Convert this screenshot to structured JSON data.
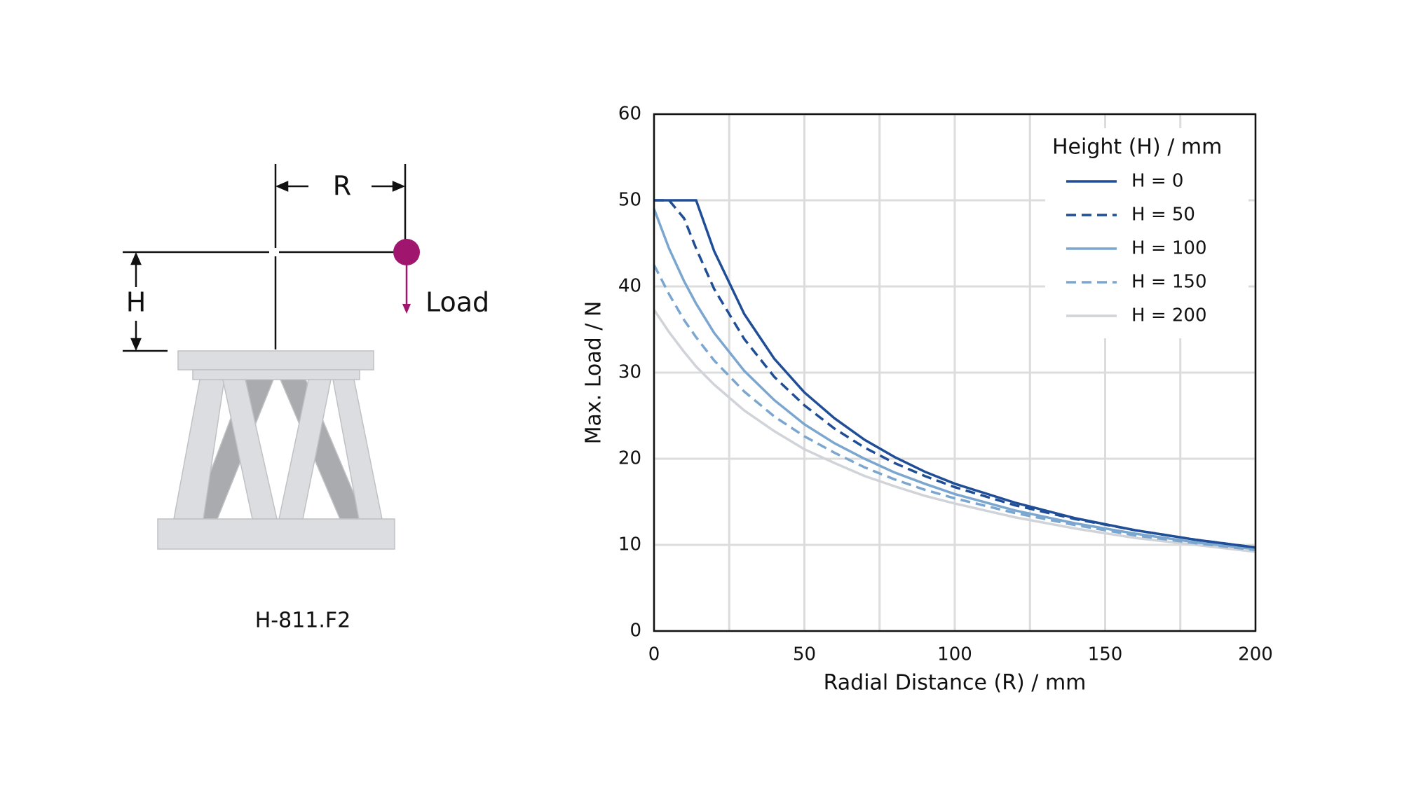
{
  "diagram": {
    "r_label": "R",
    "h_label": "H",
    "load_label": "Load",
    "model": "H-811.F2"
  },
  "chart_data": {
    "type": "line",
    "xlabel": "Radial Distance (R) / mm",
    "ylabel": "Max. Load / N",
    "legend_title": "Height (H) / mm",
    "legend_position": "upper-right",
    "grid": true,
    "xlim": [
      0,
      200
    ],
    "ylim": [
      0,
      60
    ],
    "xticks": [
      0,
      50,
      100,
      150,
      200
    ],
    "x_minor_grid": [
      25,
      75,
      125,
      175
    ],
    "yticks": [
      0,
      10,
      20,
      30,
      40,
      50,
      60
    ],
    "x": [
      0,
      5,
      10,
      14,
      20,
      30,
      40,
      50,
      60,
      70,
      80,
      90,
      100,
      120,
      140,
      160,
      180,
      200
    ],
    "series": [
      {
        "name": "H = 0",
        "color": "#1f4e96",
        "style": "solid",
        "values": [
          50,
          50,
          50,
          50,
          44.1,
          36.8,
          31.6,
          27.7,
          24.7,
          22.2,
          20.2,
          18.5,
          17.1,
          14.9,
          13.1,
          11.7,
          10.6,
          9.7
        ]
      },
      {
        "name": "H = 50",
        "color": "#1f4e96",
        "style": "dashed",
        "values": [
          50,
          50,
          47.9,
          44.4,
          39.7,
          33.9,
          29.5,
          26.2,
          23.5,
          21.3,
          19.5,
          18.0,
          16.7,
          14.6,
          13.0,
          11.7,
          10.6,
          9.7
        ]
      },
      {
        "name": "H = 100",
        "color": "#7aa6cf",
        "style": "solid",
        "values": [
          49.0,
          44.4,
          40.6,
          38.0,
          34.6,
          30.2,
          26.8,
          24.0,
          21.8,
          20.0,
          18.4,
          17.1,
          15.9,
          14.0,
          12.5,
          11.3,
          10.3,
          9.5
        ]
      },
      {
        "name": "H = 150",
        "color": "#7aa6cf",
        "style": "dashed",
        "values": [
          42.5,
          39.1,
          36.1,
          34.1,
          31.4,
          27.8,
          24.9,
          22.6,
          20.7,
          19.0,
          17.6,
          16.4,
          15.4,
          13.7,
          12.3,
          11.1,
          10.2,
          9.4
        ]
      },
      {
        "name": "H = 200",
        "color": "#d0d3d8",
        "style": "solid",
        "values": [
          37.3,
          34.7,
          32.4,
          30.7,
          28.6,
          25.6,
          23.2,
          21.1,
          19.5,
          18.0,
          16.8,
          15.7,
          14.8,
          13.2,
          11.9,
          10.8,
          10.0,
          9.2
        ]
      }
    ]
  }
}
